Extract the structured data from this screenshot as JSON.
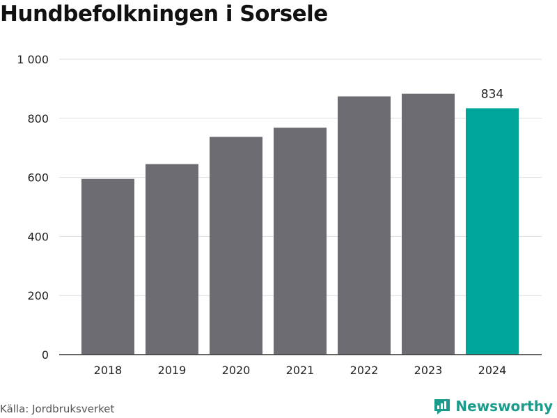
{
  "title": "Hundbefolkningen i Sorsele",
  "source": "Källa: Jordbruksverket",
  "brand": {
    "name": "Newsworthy",
    "icon": "newsworthy-logo-icon"
  },
  "colors": {
    "bar": "#6d6c72",
    "highlight": "#00a59a",
    "grid": "#dddddd",
    "axis": "#333333"
  },
  "chart_data": {
    "type": "bar",
    "title": "Hundbefolkningen i Sorsele",
    "xlabel": "",
    "ylabel": "",
    "categories": [
      "2018",
      "2019",
      "2020",
      "2021",
      "2022",
      "2023",
      "2024"
    ],
    "values": [
      595,
      645,
      737,
      768,
      874,
      883,
      834
    ],
    "highlight_index": 6,
    "data_labels": [
      {
        "category": "2024",
        "text": "834"
      }
    ],
    "ylim": [
      0,
      1000
    ],
    "yticks": [
      0,
      200,
      400,
      600,
      800,
      1000
    ],
    "ytick_labels": [
      "0",
      "200",
      "400",
      "600",
      "800",
      "1 000"
    ],
    "grid": true,
    "legend": "none"
  }
}
